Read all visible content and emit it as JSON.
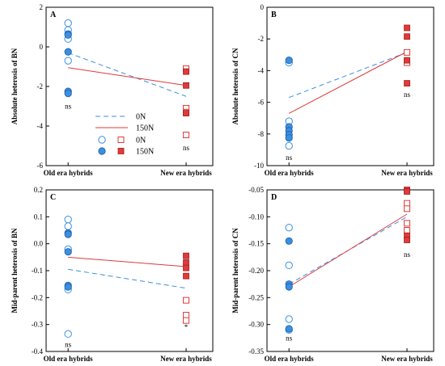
{
  "colors": {
    "blue": "#3a8fe0",
    "red": "#e03a3a",
    "axis": "#000000"
  },
  "legend": {
    "entries": [
      {
        "label": "0N",
        "kind": "line-dashed",
        "series": "0N"
      },
      {
        "label": "150N",
        "kind": "line-solid",
        "series": "150N"
      },
      {
        "label": "0N",
        "kind": "markers-open"
      },
      {
        "label": "150N",
        "kind": "markers-filled"
      }
    ]
  },
  "chart_data": [
    {
      "panel": "A",
      "type": "scatter",
      "ylabel": "Absolute heterosis of BN",
      "ylim": [
        -6,
        2
      ],
      "yticks": [
        -6,
        -4,
        -2,
        0,
        2
      ],
      "categories": [
        "Old era hybrids",
        "New era hybrids"
      ],
      "points": {
        "old_open": [
          1.2,
          0.85,
          0.4,
          -0.7
        ],
        "old_filled": [
          0.65,
          0.6,
          -0.25,
          -2.25,
          -2.35
        ],
        "new_open": [
          -1.1,
          -3.1,
          -3.3,
          -4.45
        ],
        "new_filled": [
          -1.25,
          -1.95,
          -3.35
        ]
      },
      "lines": [
        {
          "series": "0N",
          "values": [
            -0.3,
            -2.5
          ]
        },
        {
          "series": "150N",
          "values": [
            -1.05,
            -1.95
          ]
        }
      ],
      "annotations": [
        {
          "category": "Old era hybrids",
          "text": "ns",
          "y": -3.0
        },
        {
          "category": "New era hybrids",
          "text": "ns",
          "y": -5.1
        }
      ]
    },
    {
      "panel": "B",
      "type": "scatter",
      "ylabel": "Absolute heterosis of CN",
      "ylim": [
        -10,
        0
      ],
      "yticks": [
        -10,
        -8,
        -6,
        -4,
        -2,
        0
      ],
      "categories": [
        "Old era hybrids",
        "New era hybrids"
      ],
      "points": {
        "old_open": [
          -3.5,
          -7.2,
          -8.75
        ],
        "old_filled": [
          -3.35,
          -7.55,
          -7.8,
          -8.05,
          -8.25
        ],
        "new_open": [
          -2.85,
          -3.5
        ],
        "new_filled": [
          -1.3,
          -1.85,
          -3.35,
          -4.8
        ]
      },
      "lines": [
        {
          "series": "0N",
          "values": [
            -5.7,
            -2.85
          ]
        },
        {
          "series": "150N",
          "values": [
            -6.7,
            -2.8
          ]
        }
      ],
      "annotations": [
        {
          "category": "Old era hybrids",
          "text": "ns",
          "y": -9.5
        },
        {
          "category": "New era hybrids",
          "text": "ns",
          "y": -5.5
        }
      ]
    },
    {
      "panel": "C",
      "type": "scatter",
      "ylabel": "Mid-parent heterosis of BN",
      "ylim": [
        -0.4,
        0.2
      ],
      "yticks": [
        -0.4,
        -0.3,
        -0.2,
        -0.1,
        0.0,
        0.1,
        0.2
      ],
      "categories": [
        "Old era hybrids",
        "New era hybrids"
      ],
      "points": {
        "old_open": [
          0.09,
          0.065,
          -0.02,
          -0.17,
          -0.335
        ],
        "old_filled": [
          0.04,
          0.035,
          -0.03,
          -0.155,
          -0.16
        ],
        "new_open": [
          -0.21,
          -0.265,
          -0.285
        ],
        "new_filled": [
          -0.045,
          -0.07,
          -0.09,
          -0.12
        ]
      },
      "lines": [
        {
          "series": "0N",
          "values": [
            -0.095,
            -0.165
          ]
        },
        {
          "series": "150N",
          "values": [
            -0.05,
            -0.085
          ]
        }
      ],
      "annotations": [
        {
          "category": "Old era hybrids",
          "text": "ns",
          "y": -0.375
        },
        {
          "category": "New era hybrids",
          "text": "*",
          "y": -0.31
        }
      ]
    },
    {
      "panel": "D",
      "type": "scatter",
      "ylabel": "Mid-parent heterosis of CN",
      "ylim": [
        -0.35,
        -0.05
      ],
      "yticks": [
        -0.35,
        -0.3,
        -0.25,
        -0.2,
        -0.15,
        -0.1,
        -0.05
      ],
      "categories": [
        "Old era hybrids",
        "New era hybrids"
      ],
      "points": {
        "old_open": [
          -0.12,
          -0.19,
          -0.29,
          -0.31
        ],
        "old_filled": [
          -0.145,
          -0.225,
          -0.23,
          -0.308
        ],
        "new_open": [
          -0.075,
          -0.085,
          -0.112,
          -0.125
        ],
        "new_filled": [
          -0.05,
          -0.053,
          -0.135,
          -0.143
        ]
      },
      "lines": [
        {
          "series": "0N",
          "values": [
            -0.225,
            -0.1
          ]
        },
        {
          "series": "150N",
          "values": [
            -0.23,
            -0.095
          ]
        }
      ],
      "annotations": [
        {
          "category": "Old era hybrids",
          "text": "ns",
          "y": -0.325
        },
        {
          "category": "New era hybrids",
          "text": "ns",
          "y": -0.17
        }
      ]
    }
  ]
}
